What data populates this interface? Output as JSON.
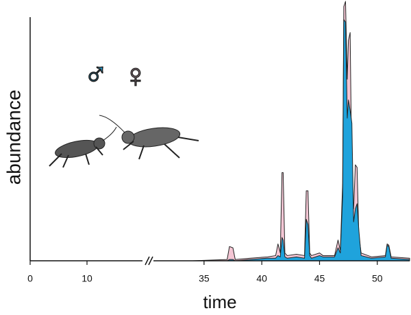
{
  "chart_data": {
    "type": "area",
    "xlabel": "time",
    "ylabel": "abundance",
    "xlim": [
      0,
      52.8
    ],
    "x_break": [
      20,
      30.5
    ],
    "ylim": [
      0,
      100
    ],
    "xticks": [
      0,
      10,
      35,
      40,
      45,
      50
    ],
    "annotations": [
      "♂",
      "♀"
    ],
    "x": [
      34,
      37.0,
      37.2,
      37.5,
      37.7,
      39,
      40.5,
      41.2,
      41.4,
      41.6,
      41.75,
      41.85,
      42.0,
      42.2,
      43.0,
      43.7,
      43.85,
      44.0,
      44.15,
      44.3,
      45.0,
      45.3,
      46.3,
      46.6,
      46.8,
      47.0,
      47.1,
      47.25,
      47.4,
      47.5,
      47.65,
      47.8,
      47.95,
      48.1,
      48.25,
      48.4,
      48.6,
      49.5,
      50.7,
      50.85,
      51.0,
      51.2,
      52.8
    ],
    "series": [
      {
        "name": "♀",
        "color": "#f4c6d4",
        "values": [
          0,
          0.5,
          5.5,
          5,
          0.5,
          1,
          1.5,
          2,
          6.5,
          3,
          34,
          34,
          3,
          2,
          2.5,
          2,
          27,
          27,
          3,
          2,
          3,
          2,
          2,
          8,
          4,
          30,
          98,
          100,
          70,
          85,
          88,
          30,
          20,
          37,
          36,
          10,
          3,
          1.5,
          2,
          6.5,
          6,
          1.5,
          1
        ]
      },
      {
        "name": "♂",
        "color": "#1fa3dc",
        "values": [
          0,
          0,
          0.5,
          0.5,
          0,
          0.5,
          1,
          1,
          2,
          1.5,
          9,
          8,
          1.5,
          1,
          1.5,
          1,
          16,
          14,
          2,
          1,
          2,
          1.5,
          1.5,
          5,
          3,
          25,
          93,
          92,
          55,
          62,
          58,
          53,
          15,
          20,
          22,
          12,
          2,
          1,
          1.5,
          6,
          5.5,
          1,
          0.5
        ]
      }
    ]
  }
}
